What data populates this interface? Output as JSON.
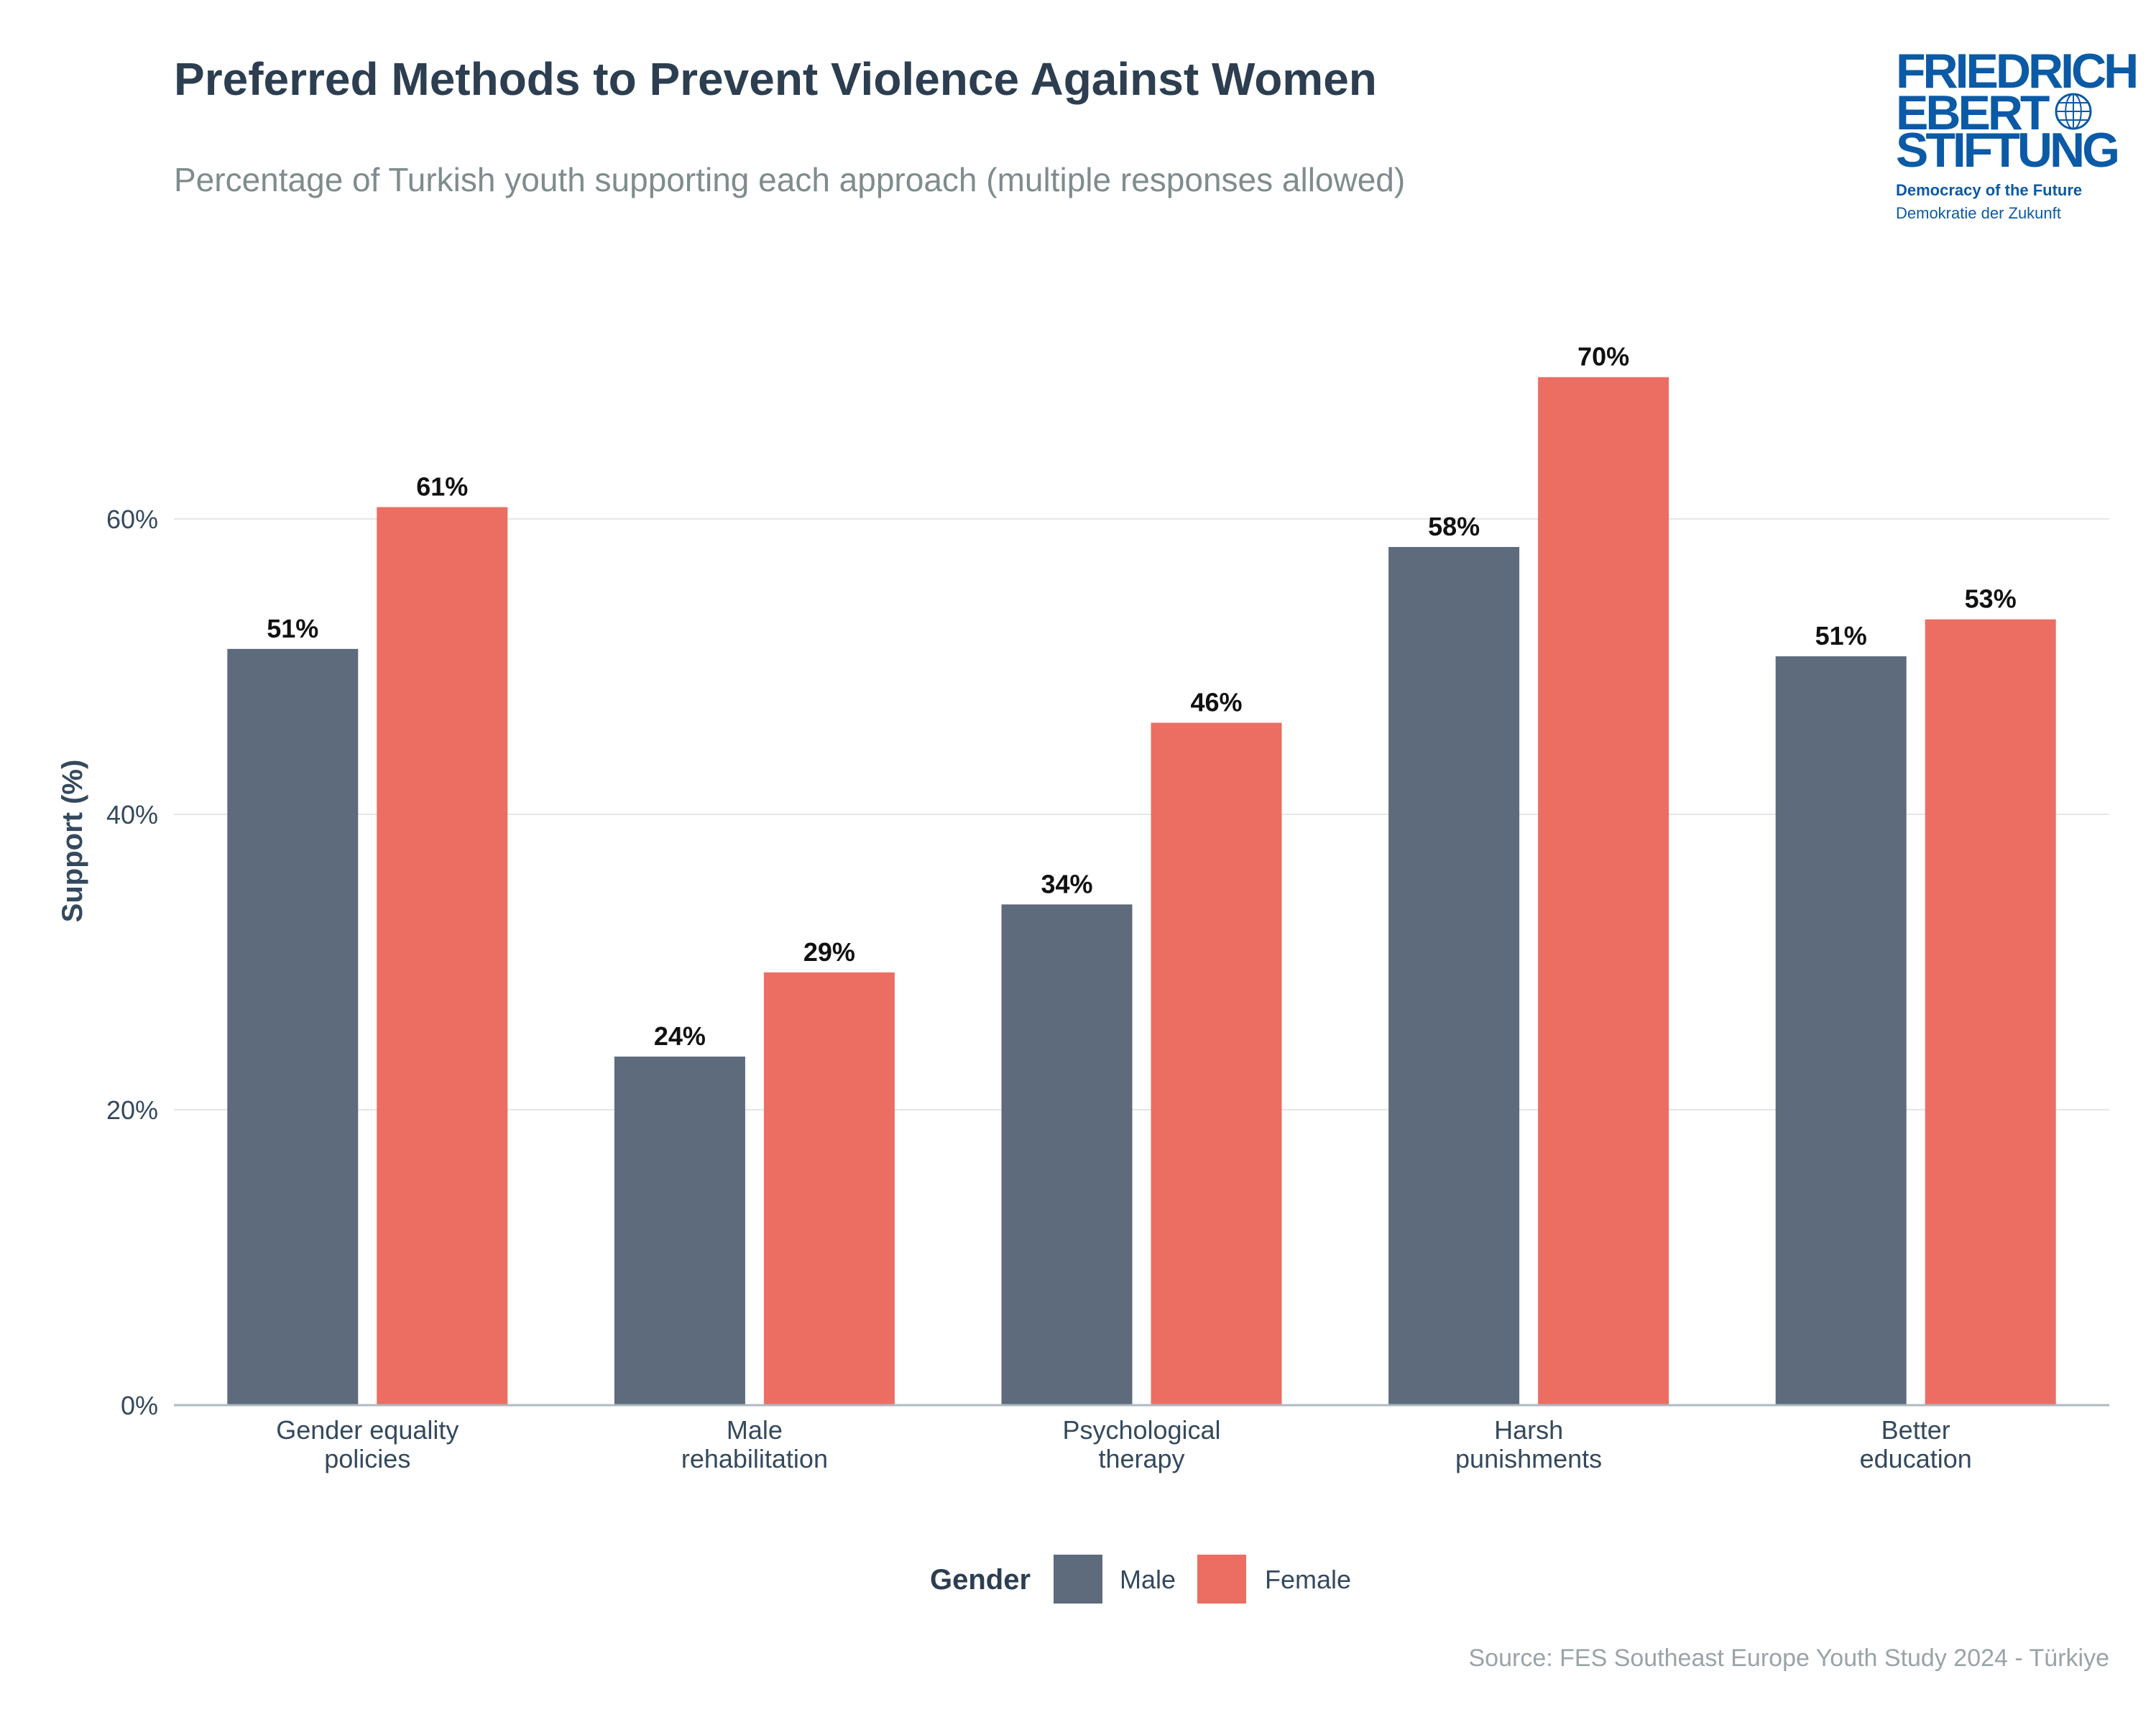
{
  "colors": {
    "title": "#2c3e50",
    "subtitle": "#7f8c8d",
    "axis_text": "#34495e",
    "grid": "#e6e6e6",
    "baseline": "#b0b8c0",
    "male": "#5d6b7c",
    "female": "#ec6e62",
    "source": "#9aa3a8",
    "logo": "#0b5aa6"
  },
  "logo": {
    "line1": "FRIEDRICH",
    "line2": "EBERT",
    "line3": "STIFTUNG",
    "tagline": "Democracy of the Future",
    "tagline_de": "Demokratie der Zukunft"
  },
  "source": "Source: FES Southeast Europe Youth Study 2024 - Türkiye",
  "chart_data": {
    "type": "bar",
    "title": "Preferred Methods to Prevent Violence Against Women",
    "subtitle": "Percentage of Turkish youth supporting each approach (multiple responses allowed)",
    "xlabel": "",
    "ylabel": "Support (%)",
    "ylim": [
      0,
      72
    ],
    "yticks": [
      0,
      20,
      40,
      60
    ],
    "ytick_labels": [
      "0%",
      "20%",
      "40%",
      "60%"
    ],
    "grid": true,
    "categories": [
      [
        "Gender equality",
        "policies"
      ],
      [
        "Male",
        "rehabilitation"
      ],
      [
        "Psychological",
        "therapy"
      ],
      [
        "Harsh",
        "punishments"
      ],
      [
        "Better",
        "education"
      ]
    ],
    "series": [
      {
        "name": "Male",
        "values": [
          51.2,
          23.6,
          33.9,
          58.1,
          50.7
        ],
        "labels": [
          "51%",
          "24%",
          "34%",
          "58%",
          "51%"
        ]
      },
      {
        "name": "Female",
        "values": [
          60.8,
          29.3,
          46.2,
          69.6,
          53.2
        ],
        "labels": [
          "61%",
          "29%",
          "46%",
          "70%",
          "53%"
        ]
      }
    ],
    "legend": {
      "title": "Gender",
      "position": "bottom"
    }
  }
}
